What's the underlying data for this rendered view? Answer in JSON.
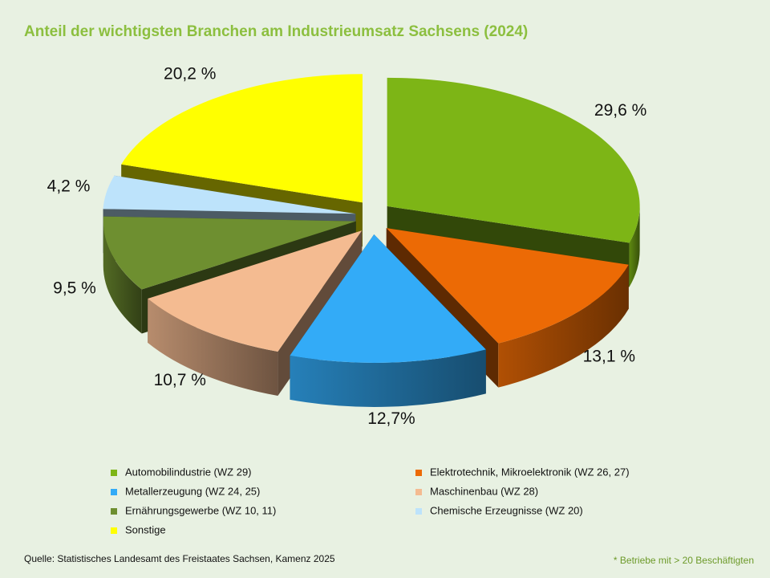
{
  "chart_data": {
    "type": "pie3d",
    "title": "Anteil der wichtigsten  Branchen am Industrieumsatz Sachsens (2024)",
    "categories": [
      "Automobilindustrie (WZ 29)",
      "Elektrotechnik, Mikroelektronik (WZ 26, 27)",
      "Metallerzeugung (WZ 24, 25)",
      "Maschinenbau (WZ 28)",
      "Ernährungsgewerbe (WZ 10, 11)",
      "Chemische Erzeugnisse (WZ 20)",
      "Sonstige"
    ],
    "values": [
      29.6,
      13.1,
      12.7,
      10.7,
      9.5,
      4.2,
      20.2
    ],
    "value_labels": [
      "29,6 %",
      "13,1 %",
      "12,7%",
      "10,7 %",
      "9,5 %",
      "4,2 %",
      "20,2 %"
    ],
    "colors": [
      "#7db516",
      "#ec6a05",
      "#33abf7",
      "#f4bb91",
      "#6e8f30",
      "#bde3fb",
      "#ffff00"
    ],
    "source": "Quelle: Statistisches Landesamt des Freistaates Sachsen, Kamenz 2025",
    "footnote": "* Betriebe mit > 20 Beschäftigten"
  }
}
